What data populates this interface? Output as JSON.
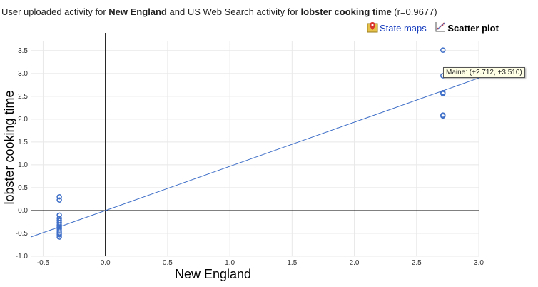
{
  "header": {
    "title_prefix": "User uploaded activity for ",
    "title_region": "New England",
    "title_middle": " and US Web Search activity for ",
    "title_query": "lobster cooking time",
    "title_suffix": " (r=0.9677)"
  },
  "toolbar": {
    "state_maps_label": "State maps",
    "scatter_plot_label": "Scatter plot",
    "state_maps_icon": "map-pin-icon",
    "scatter_plot_icon": "scatter-chart-icon"
  },
  "tooltip": {
    "text": "Maine: (+2.712, +3.510)"
  },
  "colors": {
    "points": "#3f6fc8",
    "trendline": "#3f6fc8",
    "axes": "#000000",
    "grid": "#e8e8e8"
  },
  "chart_data": {
    "type": "scatter",
    "xlabel": "New England",
    "ylabel": "lobster cooking time",
    "xlim": [
      -0.6,
      3.0
    ],
    "ylim": [
      -1.0,
      3.7
    ],
    "grid": true,
    "x_ticks": [
      -0.5,
      0.0,
      0.5,
      1.0,
      1.5,
      2.0,
      2.5,
      3.0
    ],
    "x_tick_labels": [
      "-0.5",
      "0.0",
      "0.5",
      "1.0",
      "1.5",
      "2.0",
      "2.5",
      "3.0"
    ],
    "y_ticks": [
      -1.0,
      -0.5,
      0.0,
      0.5,
      1.0,
      1.5,
      2.0,
      2.5,
      3.0,
      3.5
    ],
    "y_tick_labels": [
      "-1.0",
      "-0.5",
      "0.0",
      "0.5",
      "1.0",
      "1.5",
      "2.0",
      "2.5",
      "3.0",
      "3.5"
    ],
    "trendline": {
      "slope": 0.967,
      "intercept": 0.0
    },
    "points": [
      {
        "x": 2.712,
        "y": 3.51
      },
      {
        "x": 2.712,
        "y": 2.95
      },
      {
        "x": 2.712,
        "y": 2.58
      },
      {
        "x": 2.712,
        "y": 2.56
      },
      {
        "x": 2.712,
        "y": 2.09
      },
      {
        "x": 2.712,
        "y": 2.07
      },
      {
        "x": -0.37,
        "y": 0.3
      },
      {
        "x": -0.37,
        "y": 0.23
      },
      {
        "x": -0.37,
        "y": -0.1
      },
      {
        "x": -0.37,
        "y": -0.17
      },
      {
        "x": -0.37,
        "y": -0.22
      },
      {
        "x": -0.37,
        "y": -0.27
      },
      {
        "x": -0.37,
        "y": -0.32
      },
      {
        "x": -0.37,
        "y": -0.36
      },
      {
        "x": -0.37,
        "y": -0.4
      },
      {
        "x": -0.37,
        "y": -0.45
      },
      {
        "x": -0.37,
        "y": -0.49
      },
      {
        "x": -0.37,
        "y": -0.53
      },
      {
        "x": -0.37,
        "y": -0.58
      }
    ]
  }
}
